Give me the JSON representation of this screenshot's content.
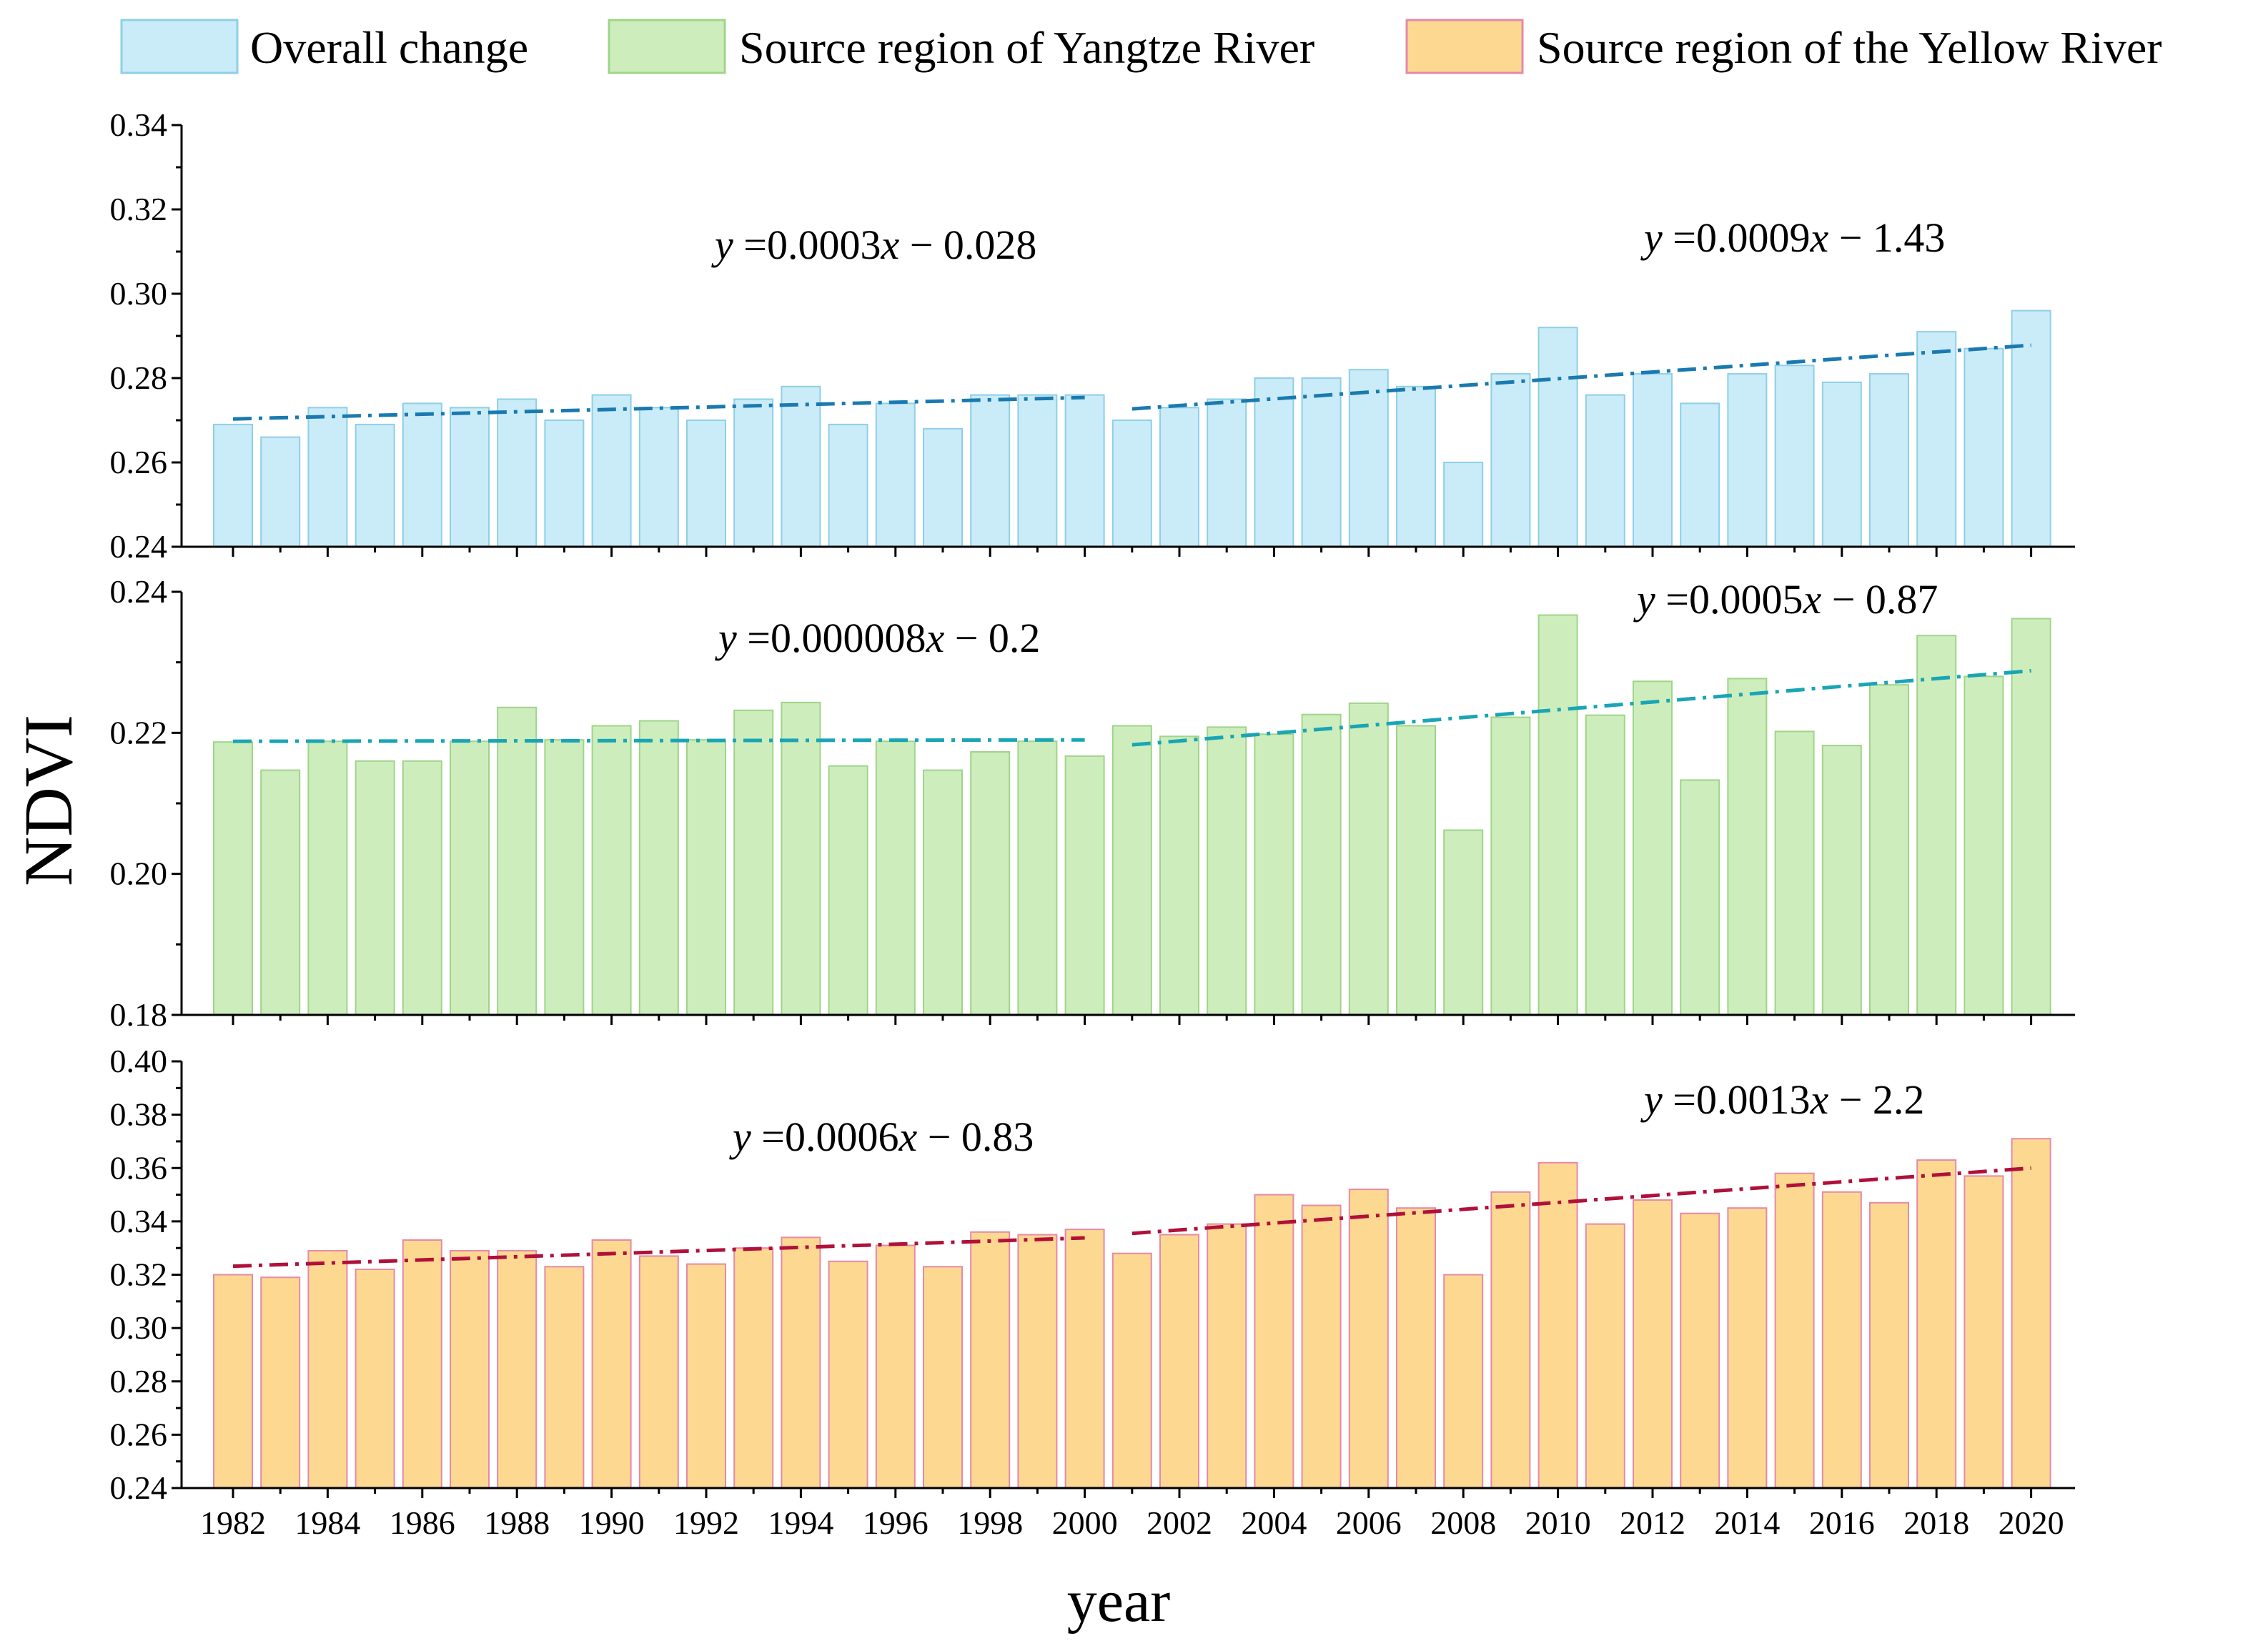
{
  "legend": [
    {
      "label": "Overall change",
      "fill": "#c9ecf8",
      "stroke": "#8fcfe6"
    },
    {
      "label": "Source region of Yangtze River",
      "fill": "#cdeebc",
      "stroke": "#9fd48a"
    },
    {
      "label": "Source region of the Yellow River",
      "fill": "#fdd891",
      "stroke": "#e48aa8"
    }
  ],
  "y_axis_title": "NDVI",
  "x_axis_title": "year",
  "x_tick_labels": [
    "1982",
    "1984",
    "1986",
    "1988",
    "1990",
    "1992",
    "1994",
    "1996",
    "1998",
    "2000",
    "2002",
    "2004",
    "2006",
    "2008",
    "2010",
    "2012",
    "2014",
    "2016",
    "2018",
    "2020"
  ],
  "chart_data": [
    {
      "type": "bar",
      "name": "Overall change",
      "categories": [
        1982,
        1983,
        1984,
        1985,
        1986,
        1987,
        1988,
        1989,
        1990,
        1991,
        1992,
        1993,
        1994,
        1995,
        1996,
        1997,
        1998,
        1999,
        2000,
        2001,
        2002,
        2003,
        2004,
        2005,
        2006,
        2007,
        2008,
        2009,
        2010,
        2011,
        2012,
        2013,
        2014,
        2015,
        2016,
        2017,
        2018,
        2019,
        2020
      ],
      "values": [
        0.269,
        0.266,
        0.273,
        0.269,
        0.274,
        0.273,
        0.275,
        0.27,
        0.276,
        0.273,
        0.27,
        0.275,
        0.278,
        0.269,
        0.274,
        0.268,
        0.276,
        0.276,
        0.276,
        0.27,
        0.273,
        0.275,
        0.28,
        0.28,
        0.282,
        0.278,
        0.26,
        0.281,
        0.292,
        0.276,
        0.281,
        0.274,
        0.281,
        0.283,
        0.279,
        0.281,
        0.291,
        0.287,
        0.296
      ],
      "ylim": [
        0.24,
        0.34
      ],
      "yticks": [
        "0.24",
        "0.26",
        "0.28",
        "0.30",
        "0.32",
        "0.34"
      ],
      "fill": "#c9ecf8",
      "stroke": "#8fcfe6",
      "trend_color": "#1a7ab0",
      "trends": [
        {
          "x": [
            1982,
            2000
          ],
          "y": [
            0.2703,
            0.2754
          ]
        },
        {
          "x": [
            2001,
            2020
          ],
          "y": [
            0.2727,
            0.2878
          ]
        }
      ],
      "equations": [
        {
          "var_y": "y",
          "equals_mid": " =0.0003",
          "var_x": "x",
          "rest": " − 0.028"
        },
        {
          "var_y": "y",
          "equals_mid": " =0.0009",
          "var_x": "x",
          "rest": " − 1.43"
        }
      ]
    },
    {
      "type": "bar",
      "name": "Source region of Yangtze River",
      "categories": [
        1982,
        1983,
        1984,
        1985,
        1986,
        1987,
        1988,
        1989,
        1990,
        1991,
        1992,
        1993,
        1994,
        1995,
        1996,
        1997,
        1998,
        1999,
        2000,
        2001,
        2002,
        2003,
        2004,
        2005,
        2006,
        2007,
        2008,
        2009,
        2010,
        2011,
        2012,
        2013,
        2014,
        2015,
        2016,
        2017,
        2018,
        2019,
        2020
      ],
      "values": [
        0.2187,
        0.2147,
        0.2188,
        0.216,
        0.216,
        0.2188,
        0.2236,
        0.219,
        0.221,
        0.2217,
        0.219,
        0.2232,
        0.2243,
        0.2153,
        0.2188,
        0.2147,
        0.2173,
        0.2188,
        0.2167,
        0.221,
        0.2195,
        0.2208,
        0.2198,
        0.2226,
        0.2242,
        0.221,
        0.2062,
        0.2222,
        0.2367,
        0.2225,
        0.2273,
        0.2133,
        0.2277,
        0.2202,
        0.2182,
        0.2268,
        0.2338,
        0.228,
        0.2362
      ],
      "ylim": [
        0.18,
        0.24
      ],
      "yticks": [
        "0.18",
        "0.20",
        "0.22",
        "0.24"
      ],
      "fill": "#cdeebc",
      "stroke": "#9fd48a",
      "trend_color": "#1aa5b5",
      "trends": [
        {
          "x": [
            1982,
            2000
          ],
          "y": [
            0.2188,
            0.219
          ]
        },
        {
          "x": [
            2001,
            2020
          ],
          "y": [
            0.2183,
            0.2288
          ]
        }
      ],
      "equations": [
        {
          "var_y": "y",
          "equals_mid": " =0.000008",
          "var_x": "x",
          "rest": " − 0.2"
        },
        {
          "var_y": "y",
          "equals_mid": " =0.0005",
          "var_x": "x",
          "rest": " − 0.87"
        }
      ]
    },
    {
      "type": "bar",
      "name": "Source region of the Yellow River",
      "categories": [
        1982,
        1983,
        1984,
        1985,
        1986,
        1987,
        1988,
        1989,
        1990,
        1991,
        1992,
        1993,
        1994,
        1995,
        1996,
        1997,
        1998,
        1999,
        2000,
        2001,
        2002,
        2003,
        2004,
        2005,
        2006,
        2007,
        2008,
        2009,
        2010,
        2011,
        2012,
        2013,
        2014,
        2015,
        2016,
        2017,
        2018,
        2019,
        2020
      ],
      "values": [
        0.32,
        0.319,
        0.329,
        0.322,
        0.333,
        0.329,
        0.329,
        0.323,
        0.333,
        0.327,
        0.324,
        0.33,
        0.334,
        0.325,
        0.331,
        0.323,
        0.336,
        0.335,
        0.337,
        0.328,
        0.335,
        0.339,
        0.35,
        0.346,
        0.352,
        0.345,
        0.32,
        0.351,
        0.362,
        0.339,
        0.348,
        0.343,
        0.345,
        0.358,
        0.351,
        0.347,
        0.363,
        0.357,
        0.371
      ],
      "ylim": [
        0.24,
        0.4
      ],
      "yticks": [
        "0.24",
        "0.26",
        "0.28",
        "0.30",
        "0.32",
        "0.34",
        "0.36",
        "0.38",
        "0.40"
      ],
      "fill": "#fdd891",
      "stroke": "#e48aa8",
      "trend_color": "#b0103a",
      "trends": [
        {
          "x": [
            1982,
            2000
          ],
          "y": [
            0.3232,
            0.3338
          ]
        },
        {
          "x": [
            2001,
            2020
          ],
          "y": [
            0.3355,
            0.36
          ]
        }
      ],
      "equations": [
        {
          "var_y": "y",
          "equals_mid": " =0.0006",
          "var_x": "x",
          "rest": " − 0.83"
        },
        {
          "var_y": "y",
          "equals_mid": " =0.0013",
          "var_x": "x",
          "rest": " − 2.2"
        }
      ]
    }
  ]
}
